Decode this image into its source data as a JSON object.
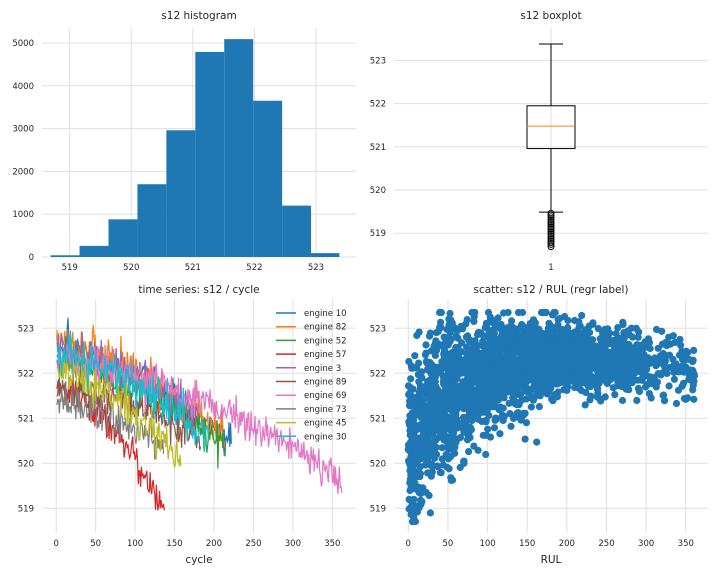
{
  "chart_data": [
    {
      "type": "bar",
      "title": "s12 histogram",
      "xlabel": "",
      "ylabel": "",
      "xlim": [
        518.55,
        523.65
      ],
      "ylim": [
        0,
        5350
      ],
      "xticks": [
        519,
        520,
        521,
        522,
        523
      ],
      "yticks": [
        0,
        1000,
        2000,
        3000,
        4000,
        5000
      ],
      "bins": [
        {
          "x0": 518.69,
          "x1": 519.16,
          "count": 40
        },
        {
          "x0": 519.16,
          "x1": 519.63,
          "count": 260
        },
        {
          "x0": 519.63,
          "x1": 520.1,
          "count": 880
        },
        {
          "x0": 520.1,
          "x1": 520.57,
          "count": 1700
        },
        {
          "x0": 520.57,
          "x1": 521.04,
          "count": 2960
        },
        {
          "x0": 521.04,
          "x1": 521.51,
          "count": 4790
        },
        {
          "x0": 521.51,
          "x1": 521.98,
          "count": 5090
        },
        {
          "x0": 521.98,
          "x1": 522.45,
          "count": 3650
        },
        {
          "x0": 522.45,
          "x1": 522.92,
          "count": 1200
        },
        {
          "x0": 522.92,
          "x1": 523.38,
          "count": 90
        }
      ],
      "color": "#1f77b4"
    },
    {
      "type": "box",
      "title": "s12 boxplot",
      "category": "1",
      "ylim": [
        518.45,
        523.75
      ],
      "yticks": [
        519,
        520,
        521,
        522,
        523
      ],
      "q1": 520.96,
      "median": 521.48,
      "q3": 521.95,
      "whisker_low": 519.49,
      "whisker_high": 523.38,
      "outliers": [
        519.46,
        519.42,
        519.38,
        519.34,
        519.3,
        519.26,
        519.22,
        519.18,
        519.14,
        519.1,
        519.06,
        519.02,
        518.98,
        518.94,
        518.9,
        518.86,
        518.82,
        518.78,
        518.74,
        518.69
      ]
    },
    {
      "type": "line",
      "title": "time series: s12 / cycle",
      "xlabel": "cycle",
      "ylabel": "",
      "xlim": [
        -18,
        380
      ],
      "ylim": [
        518.45,
        523.65
      ],
      "xticks": [
        0,
        50,
        100,
        150,
        200,
        250,
        300,
        350
      ],
      "yticks": [
        519,
        520,
        521,
        522,
        523
      ],
      "series": [
        {
          "name": "engine 10",
          "color": "#1f77b4",
          "cycles": 222,
          "start": 522.5,
          "end": 520.5,
          "noise": 0.45
        },
        {
          "name": "engine 82",
          "color": "#ff7f0e",
          "cycles": 214,
          "start": 522.6,
          "end": 520.6,
          "noise": 0.45
        },
        {
          "name": "engine 52",
          "color": "#2ca02c",
          "cycles": 213,
          "start": 522.2,
          "end": 520.4,
          "noise": 0.4
        },
        {
          "name": "engine 57",
          "color": "#d62728",
          "cycles": 137,
          "start": 521.7,
          "end": 519.0,
          "noise": 0.35
        },
        {
          "name": "engine 3",
          "color": "#9467bd",
          "cycles": 179,
          "start": 522.5,
          "end": 521.0,
          "noise": 0.4
        },
        {
          "name": "engine 89",
          "color": "#8c564b",
          "cycles": 183,
          "start": 521.7,
          "end": 520.6,
          "noise": 0.35
        },
        {
          "name": "engine 69",
          "color": "#e377c2",
          "cycles": 362,
          "start": 522.3,
          "end": 519.6,
          "noise": 0.4
        },
        {
          "name": "engine 73",
          "color": "#7f7f7f",
          "cycles": 136,
          "start": 521.3,
          "end": 520.4,
          "noise": 0.35
        },
        {
          "name": "engine 45",
          "color": "#bcbd22",
          "cycles": 158,
          "start": 522.0,
          "end": 520.1,
          "noise": 0.45
        },
        {
          "name": "engine 30",
          "color": "#17becf",
          "cycles": 193,
          "start": 522.4,
          "end": 520.5,
          "noise": 0.45
        }
      ]
    },
    {
      "type": "scatter",
      "title": "scatter: s12 / RUL (regr label)",
      "xlabel": "RUL",
      "ylabel": "",
      "xlim": [
        -18,
        378
      ],
      "ylim": [
        518.45,
        523.65
      ],
      "xticks": [
        0,
        50,
        100,
        150,
        200,
        250,
        300,
        350
      ],
      "yticks": [
        519,
        520,
        521,
        522,
        523
      ],
      "color": "#1f77b4",
      "trend": [
        [
          0,
          520.1
        ],
        [
          25,
          521.0
        ],
        [
          50,
          521.6
        ],
        [
          100,
          522.05
        ],
        [
          150,
          522.25
        ],
        [
          200,
          522.3
        ],
        [
          250,
          522.3
        ],
        [
          300,
          522.2
        ],
        [
          360,
          522.1
        ]
      ]
    }
  ]
}
